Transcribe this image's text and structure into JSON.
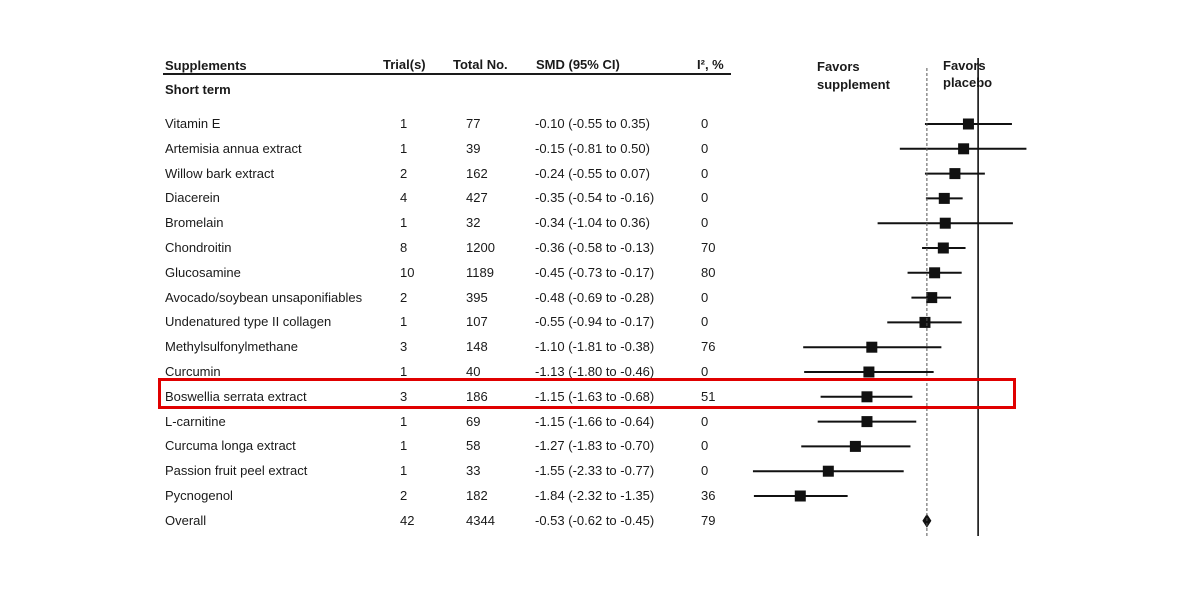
{
  "header": {
    "supplements": "Supplements",
    "trials": "Trial(s)",
    "total": "Total No.",
    "smd": "SMD (95% CI)",
    "i2": "I², %",
    "favors_supplement_1": "Favors",
    "favors_supplement_2": "supplement",
    "favors_placebo_1": "Favors",
    "favors_placebo_2": "placebo"
  },
  "section_label": "Short term",
  "highlight_color": "#e00000",
  "chart_data": {
    "type": "forest",
    "x_range": [
      -2.05,
      0.33
    ],
    "null_line": 0,
    "overall_line": -0.53,
    "grid": false,
    "rows": [
      {
        "name": "Vitamin E",
        "trials": "1",
        "total": "77",
        "smd_text": "-0.10 (-0.55 to 0.35)",
        "i2": "0",
        "est": -0.1,
        "lo": -0.55,
        "hi": 0.35
      },
      {
        "name": "Artemisia annua extract",
        "trials": "1",
        "total": "39",
        "smd_text": "-0.15 (-0.81 to 0.50)",
        "i2": "0",
        "est": -0.15,
        "lo": -0.81,
        "hi": 0.5
      },
      {
        "name": "Willow bark extract",
        "trials": "2",
        "total": "162",
        "smd_text": "-0.24 (-0.55 to 0.07)",
        "i2": "0",
        "est": -0.24,
        "lo": -0.55,
        "hi": 0.07
      },
      {
        "name": "Diacerein",
        "trials": "4",
        "total": "427",
        "smd_text": "-0.35 (-0.54 to -0.16)",
        "i2": "0",
        "est": -0.35,
        "lo": -0.54,
        "hi": -0.16
      },
      {
        "name": "Bromelain",
        "trials": "1",
        "total": "32",
        "smd_text": "-0.34 (-1.04 to 0.36)",
        "i2": "0",
        "est": -0.34,
        "lo": -1.04,
        "hi": 0.36
      },
      {
        "name": "Chondroitin",
        "trials": "8",
        "total": "1200",
        "smd_text": "-0.36 (-0.58 to -0.13)",
        "i2": "70",
        "est": -0.36,
        "lo": -0.58,
        "hi": -0.13
      },
      {
        "name": "Glucosamine",
        "trials": "10",
        "total": "1189",
        "smd_text": "-0.45 (-0.73 to -0.17)",
        "i2": "80",
        "est": -0.45,
        "lo": -0.73,
        "hi": -0.17
      },
      {
        "name": "Avocado/soybean unsaponifiables",
        "trials": "2",
        "total": "395",
        "smd_text": "-0.48 (-0.69 to -0.28)",
        "i2": "0",
        "est": -0.48,
        "lo": -0.69,
        "hi": -0.28
      },
      {
        "name": "Undenatured type II collagen",
        "trials": "1",
        "total": "107",
        "smd_text": "-0.55 (-0.94 to -0.17)",
        "i2": "0",
        "est": -0.55,
        "lo": -0.94,
        "hi": -0.17
      },
      {
        "name": "Methylsulfonylmethane",
        "trials": "3",
        "total": "148",
        "smd_text": "-1.10 (-1.81 to -0.38)",
        "i2": "76",
        "est": -1.1,
        "lo": -1.81,
        "hi": -0.38
      },
      {
        "name": "Curcumin",
        "trials": "1",
        "total": "40",
        "smd_text": "-1.13 (-1.80 to -0.46)",
        "i2": "0",
        "est": -1.13,
        "lo": -1.8,
        "hi": -0.46
      },
      {
        "name": "Boswellia serrata extract",
        "trials": "3",
        "total": "186",
        "smd_text": "-1.15 (-1.63 to -0.68)",
        "i2": "51",
        "est": -1.15,
        "lo": -1.63,
        "hi": -0.68,
        "highlighted": true
      },
      {
        "name": "L-carnitine",
        "trials": "1",
        "total": "69",
        "smd_text": "-1.15 (-1.66 to -0.64)",
        "i2": "0",
        "est": -1.15,
        "lo": -1.66,
        "hi": -0.64
      },
      {
        "name": "Curcuma longa extract",
        "trials": "1",
        "total": "58",
        "smd_text": "-1.27 (-1.83 to -0.70)",
        "i2": "0",
        "est": -1.27,
        "lo": -1.83,
        "hi": -0.7
      },
      {
        "name": "Passion fruit peel extract",
        "trials": "1",
        "total": "33",
        "smd_text": "-1.55 (-2.33 to -0.77)",
        "i2": "0",
        "est": -1.55,
        "lo": -2.33,
        "hi": -0.77
      },
      {
        "name": "Pycnogenol",
        "trials": "2",
        "total": "182",
        "smd_text": "-1.84 (-2.32 to -1.35)",
        "i2": "36",
        "est": -1.84,
        "lo": -2.32,
        "hi": -1.35
      },
      {
        "name": "Overall",
        "trials": "42",
        "total": "4344",
        "smd_text": "-0.53 (-0.62 to -0.45)",
        "i2": "79",
        "est": -0.53,
        "lo": -0.62,
        "hi": -0.45,
        "overall": true
      }
    ]
  }
}
